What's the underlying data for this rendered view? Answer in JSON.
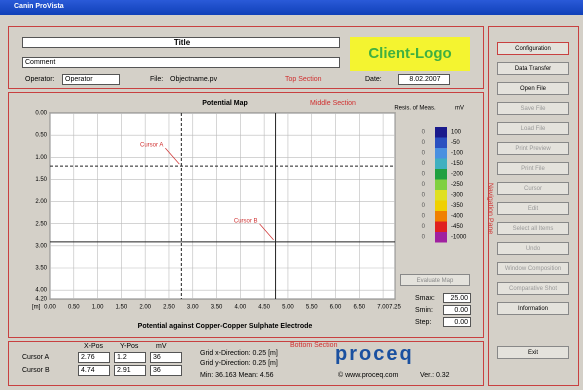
{
  "window": {
    "title": "Canin ProVista"
  },
  "top_section": {
    "title": "Title",
    "comment": "Comment",
    "operator_label": "Operator:",
    "operator": "Operator",
    "file_label": "File:",
    "file": "Objectname.pv",
    "section_label": "Top Section",
    "logo": "Client-Logo",
    "date_label": "Date:",
    "date": "8.02.2007"
  },
  "middle_section": {
    "map_title": "Potential Map",
    "section_label": "Middle Section",
    "x_axis_label": "Potential against Copper-Copper Sulphate Electrode",
    "unit": "[m]",
    "y_ticks": [
      "0.00",
      "0.50",
      "1.00",
      "1.50",
      "2.00",
      "2.50",
      "3.00",
      "3.50",
      "4.00",
      "4.20"
    ],
    "x_ticks": [
      "0.00",
      "0.50",
      "1.00",
      "1.50",
      "2.00",
      "2.50",
      "3.00",
      "3.50",
      "4.00",
      "4.50",
      "5.00",
      "5.50",
      "6.00",
      "6.50",
      "7.00",
      "7.25"
    ],
    "cursors": [
      {
        "label": "Cursor A",
        "x": "2.76",
        "y": "1.2"
      },
      {
        "label": "Cursor B",
        "x": "4.74",
        "y": "2.91"
      }
    ],
    "legend": {
      "header_left": "Resis. of Meas.",
      "header_right": "mV",
      "items": [
        {
          "count": "0",
          "label": "100"
        },
        {
          "count": "0",
          "label": "-50"
        },
        {
          "count": "0",
          "label": "-100"
        },
        {
          "count": "0",
          "label": "-150"
        },
        {
          "count": "0",
          "label": "-200"
        },
        {
          "count": "0",
          "label": "-250"
        },
        {
          "count": "0",
          "label": "-300"
        },
        {
          "count": "0",
          "label": "-350"
        },
        {
          "count": "0",
          "label": "-400"
        },
        {
          "count": "0",
          "label": "-450"
        },
        {
          "count": "0",
          "label": "-1000"
        }
      ]
    },
    "evaluate_button": "Evaluate Map",
    "scale": [
      {
        "label": "Smax:",
        "value": "25.00"
      },
      {
        "label": "Smin:",
        "value": "0.00"
      },
      {
        "label": "Step:",
        "value": "0.00"
      }
    ]
  },
  "bottom_section": {
    "section_label": "Bottom Section",
    "headers": [
      "X-Pos",
      "Y-Pos",
      "mV"
    ],
    "rows": [
      [
        "Cursor A",
        "2.76",
        "1.2",
        "36"
      ],
      [
        "Cursor B",
        "4.74",
        "2.91",
        "36"
      ]
    ],
    "grid_x": "Grid x-Direction:   0.25 [m]",
    "grid_y": "Grid y-Direction:   0.25 [m]",
    "stats": "Min:  36.163     Mean:  4.56",
    "logo": "proceq",
    "website": "© www.proceq.com",
    "version": "Ver.:  0.32"
  },
  "navigation_pane": {
    "label": "Navigation Pane",
    "buttons": [
      "Configuration",
      "Data Transfer",
      "Open File",
      "Save File",
      "Load File",
      "Print Preview",
      "Print File",
      "Cursor",
      "Edit",
      "Select all Items",
      "Undo",
      "Window Composition",
      "Comparative Shot",
      "Information"
    ],
    "exit": "Exit"
  }
}
